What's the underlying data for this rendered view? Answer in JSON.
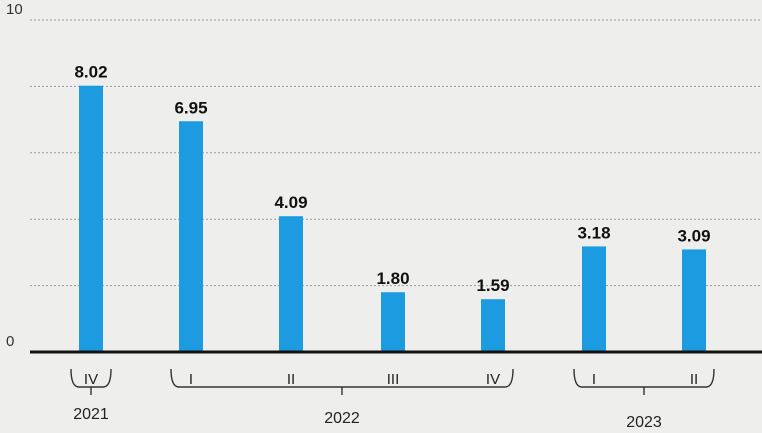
{
  "chart_data": {
    "type": "bar",
    "categories": [
      "IV",
      "I",
      "II",
      "III",
      "IV",
      "I",
      "II"
    ],
    "values": [
      8.02,
      6.95,
      4.09,
      1.8,
      1.59,
      3.18,
      3.09
    ],
    "value_labels": [
      "8.02",
      "6.95",
      "4.09",
      "1.80",
      "1.59",
      "3.18",
      "3.09"
    ],
    "groups": [
      {
        "label": "2021",
        "start": 0,
        "end": 0
      },
      {
        "label": "2022",
        "start": 1,
        "end": 4
      },
      {
        "label": "2023",
        "start": 5,
        "end": 6
      }
    ],
    "ylim": [
      0,
      10
    ],
    "yticks": [
      0,
      10
    ],
    "ytick_labels": [
      "0",
      "10"
    ],
    "grid": true,
    "bar_color": "#1c9be0"
  }
}
